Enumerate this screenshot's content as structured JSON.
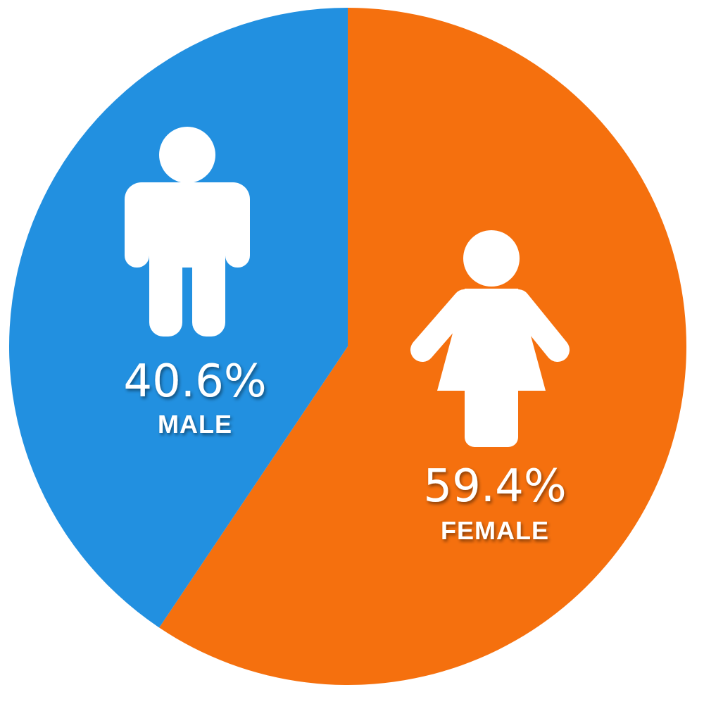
{
  "chart_data": {
    "type": "pie",
    "start_angle_deg": 0,
    "direction": "clockwise",
    "slices": [
      {
        "label": "FEMALE",
        "value": 59.4,
        "value_label": "59.4%",
        "color": "#f5700e",
        "icon": "female-person-icon"
      },
      {
        "label": "MALE",
        "value": 40.6,
        "value_label": "40.6%",
        "color": "#2290e0",
        "icon": "male-person-icon"
      }
    ]
  }
}
